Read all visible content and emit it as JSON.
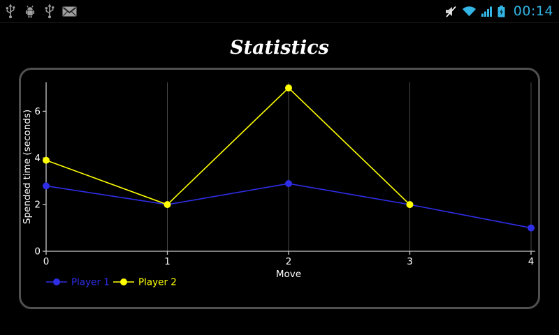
{
  "status_bar": {
    "time": "00:14",
    "accent_color": "#33B5E5",
    "left_icons": [
      "usb-icon",
      "usb-debug-icon",
      "usb-icon",
      "gmail-icon"
    ],
    "right_icons": [
      "mute-icon",
      "wifi-icon",
      "signal-strength-icon",
      "battery-charging-icon"
    ]
  },
  "page": {
    "title": "Statistics"
  },
  "chart_data": {
    "type": "line",
    "title": "Statistics",
    "xlabel": "Move",
    "ylabel": "Spended time (seconds)",
    "xlim": [
      0,
      4
    ],
    "ylim": [
      0,
      7
    ],
    "xticks": [
      0,
      1,
      2,
      3,
      4
    ],
    "yticks": [
      0,
      2,
      4,
      6
    ],
    "grid": "vertical-only",
    "legend_position": "bottom-left",
    "background_color": "#000000",
    "axis_color": "#c8c8c8",
    "grid_color": "#4a4a4a",
    "tick_text_color": "#ffffff",
    "series": [
      {
        "name": "Player 1",
        "color": "#2e2ee8",
        "x": [
          0,
          1,
          2,
          3,
          4
        ],
        "values": [
          2.8,
          2,
          2.9,
          2,
          1
        ]
      },
      {
        "name": "Player 2",
        "color": "#ffff00",
        "x": [
          0,
          1,
          2,
          3
        ],
        "values": [
          3.9,
          2,
          7,
          2
        ]
      }
    ]
  }
}
